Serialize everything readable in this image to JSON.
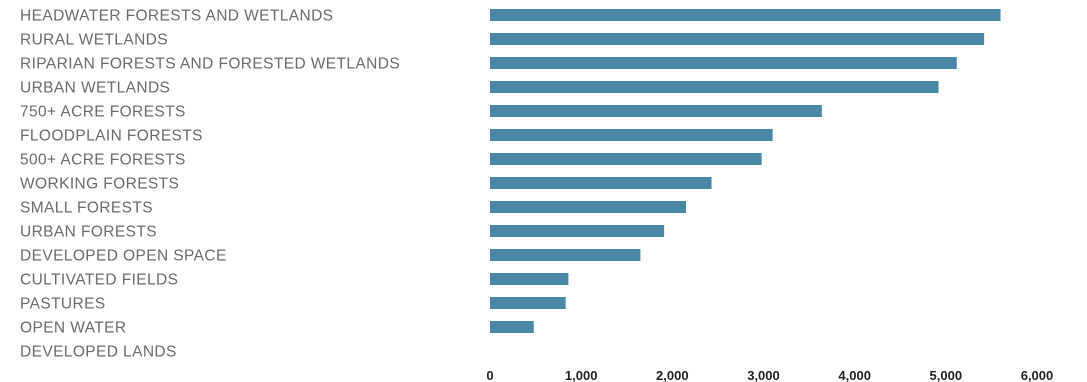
{
  "chart_data": {
    "type": "bar",
    "orientation": "horizontal",
    "categories": [
      "HEADWATER FORESTS AND WETLANDS",
      "RURAL WETLANDS",
      "RIPARIAN FORESTS AND FORESTED WETLANDS",
      "URBAN WETLANDS",
      "750+ ACRE FORESTS",
      "FLOODPLAIN FORESTS",
      "500+ ACRE FORESTS",
      "WORKING FORESTS",
      "SMALL FORESTS",
      "URBAN FORESTS",
      "DEVELOPED OPEN SPACE",
      "CULTIVATED FIELDS",
      "PASTURES",
      "OPEN WATER",
      "DEVELOPED LANDS"
    ],
    "values": [
      5600,
      5420,
      5120,
      4920,
      3640,
      3100,
      2980,
      2430,
      2150,
      1910,
      1650,
      860,
      830,
      480,
      0
    ],
    "xlim": [
      0,
      6000
    ],
    "xticks": [
      "0",
      "1,000",
      "2,000",
      "3,000",
      "4,000",
      "5,000",
      "6,000"
    ],
    "xtick_values": [
      0,
      1000,
      2000,
      3000,
      4000,
      5000,
      6000
    ],
    "title": "",
    "xlabel": "",
    "ylabel": "",
    "grid": false,
    "bar_color": "#4a88a5"
  }
}
